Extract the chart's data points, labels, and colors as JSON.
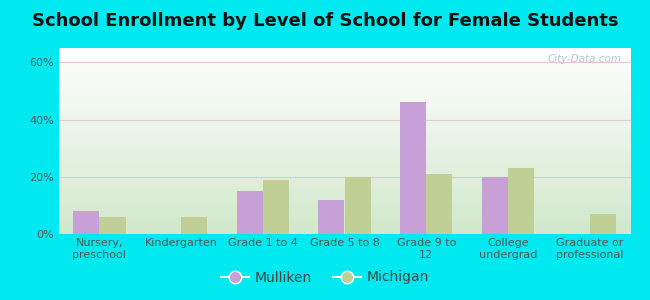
{
  "title": "School Enrollment by Level of School for Female Students",
  "categories": [
    "Nursery,\npreschool",
    "Kindergarten",
    "Grade 1 to 4",
    "Grade 5 to 8",
    "Grade 9 to\n12",
    "College\nundergrad",
    "Graduate or\nprofessional"
  ],
  "mulliken": [
    8,
    0,
    15,
    12,
    46,
    20,
    0
  ],
  "michigan": [
    6,
    6,
    19,
    20,
    21,
    23,
    7
  ],
  "mulliken_color": "#c8a0d8",
  "michigan_color": "#bfcf96",
  "background_outer": "#00e8f0",
  "ylim": [
    0,
    65
  ],
  "yticks": [
    0,
    20,
    40,
    60
  ],
  "ytick_labels": [
    "0%",
    "20%",
    "40%",
    "60%"
  ],
  "bar_width": 0.32,
  "legend_labels": [
    "Mulliken",
    "Michigan"
  ],
  "title_fontsize": 13,
  "tick_fontsize": 8,
  "legend_fontsize": 10,
  "watermark": "City-Data.com"
}
